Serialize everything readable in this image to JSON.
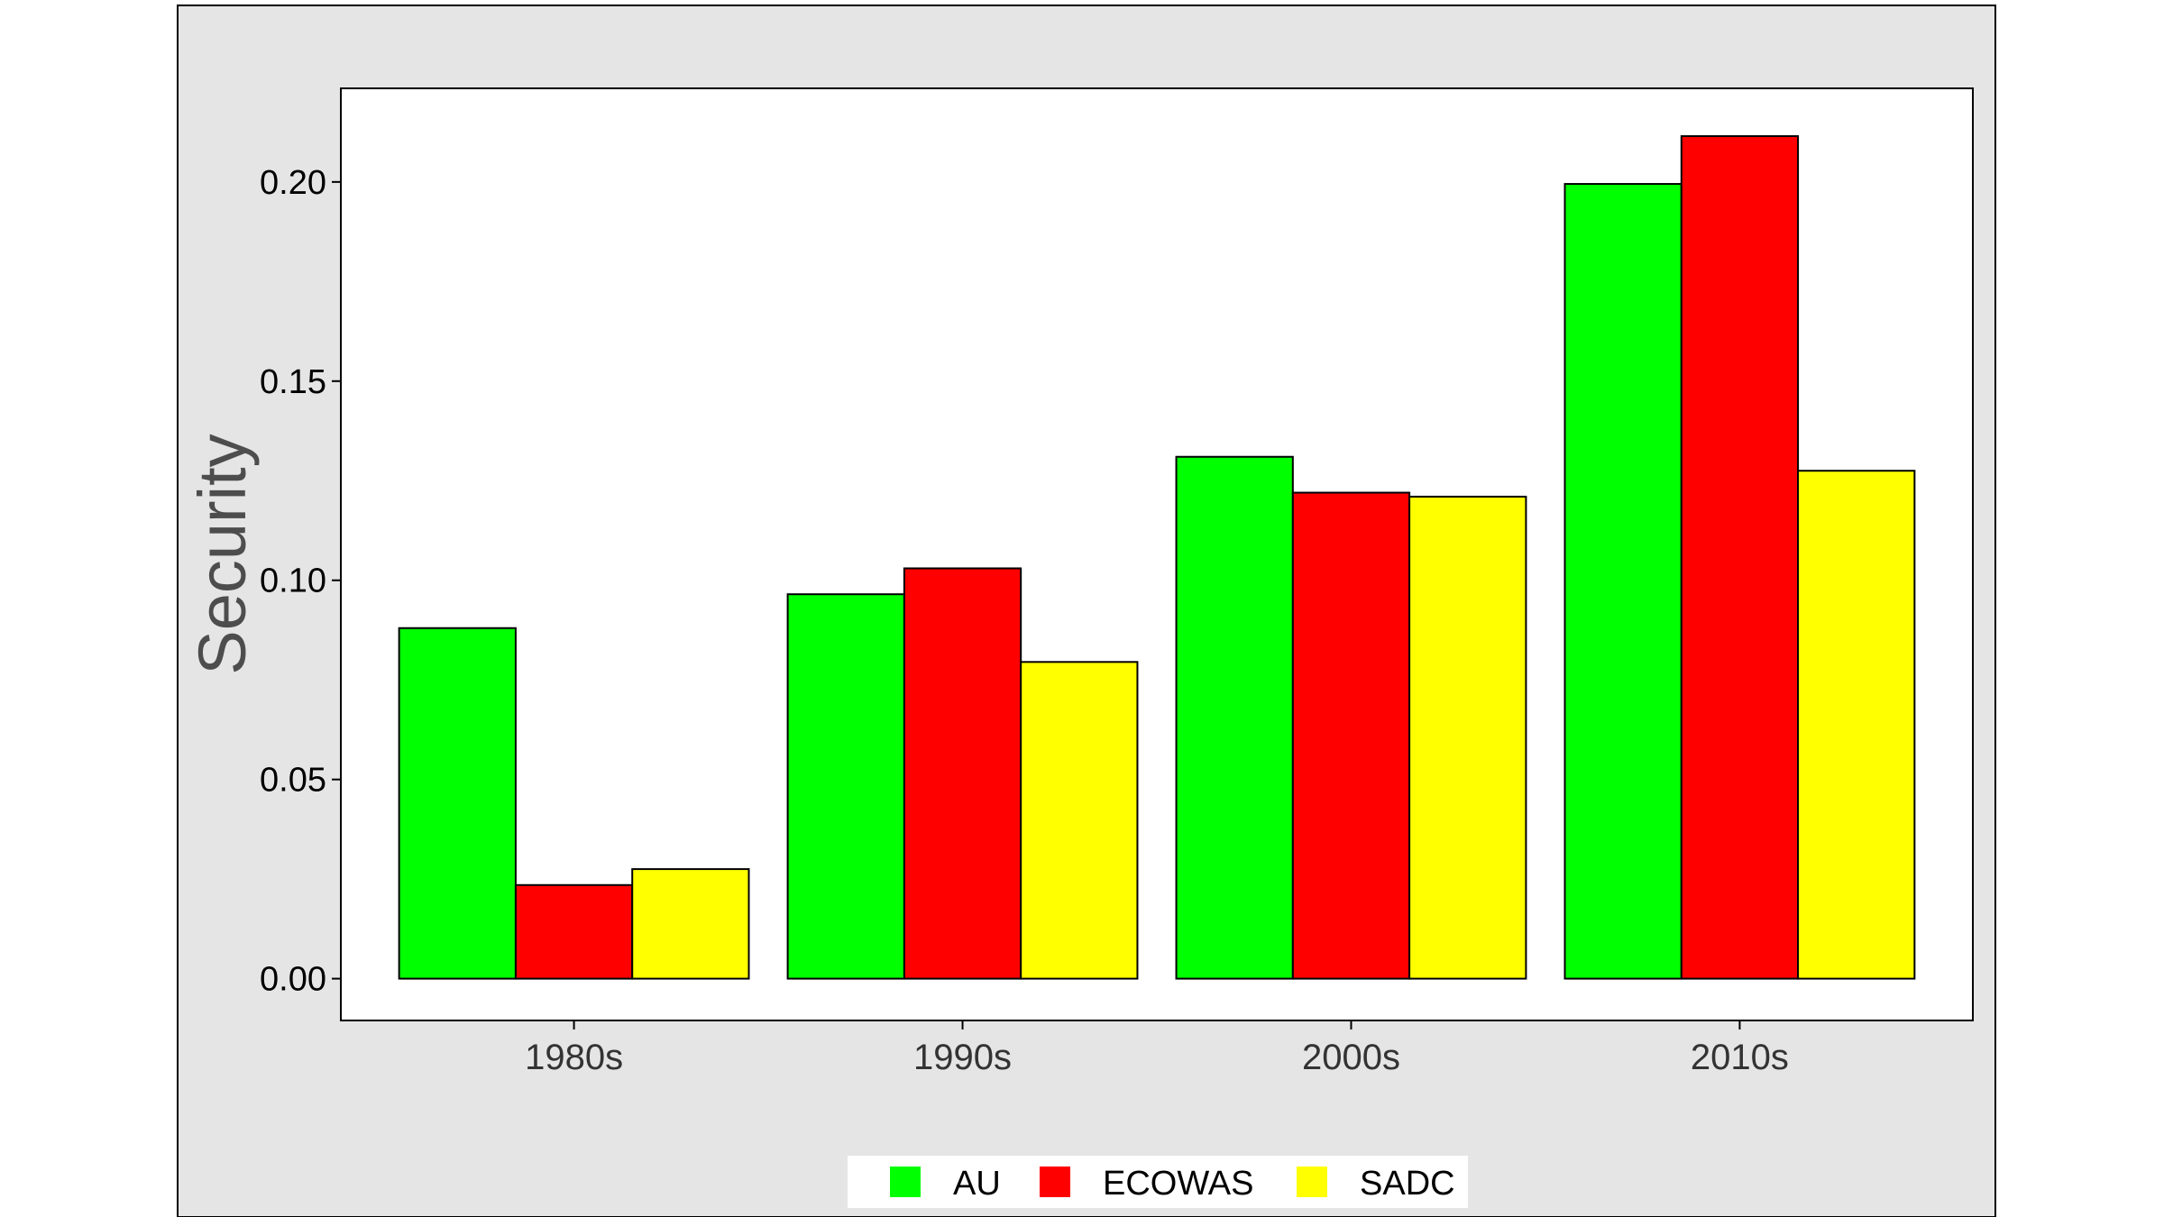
{
  "chart_data": {
    "type": "bar",
    "title": "",
    "xlabel": "",
    "ylabel": "Security",
    "categories": [
      "1980s",
      "1990s",
      "2000s",
      "2010s"
    ],
    "series": [
      {
        "name": "AU",
        "color": "#00ff00",
        "values": [
          0.088,
          0.0965,
          0.131,
          0.1995
        ]
      },
      {
        "name": "ECOWAS",
        "color": "#ff0000",
        "values": [
          0.0235,
          0.103,
          0.122,
          0.2115
        ]
      },
      {
        "name": "SADC",
        "color": "#ffff00",
        "values": [
          0.0275,
          0.0795,
          0.121,
          0.1275
        ]
      }
    ],
    "ylim": [
      -0.0105,
      0.2235
    ],
    "yticks": [
      0.0,
      0.05,
      0.1,
      0.15,
      0.2
    ],
    "ytick_labels": [
      "0.00",
      "0.05",
      "0.10",
      "0.15",
      "0.20"
    ],
    "grid": false,
    "legend_position": "bottom",
    "colors": {
      "background": "#e5e5e5",
      "panel": "#ffffff",
      "border": "#000000"
    }
  }
}
